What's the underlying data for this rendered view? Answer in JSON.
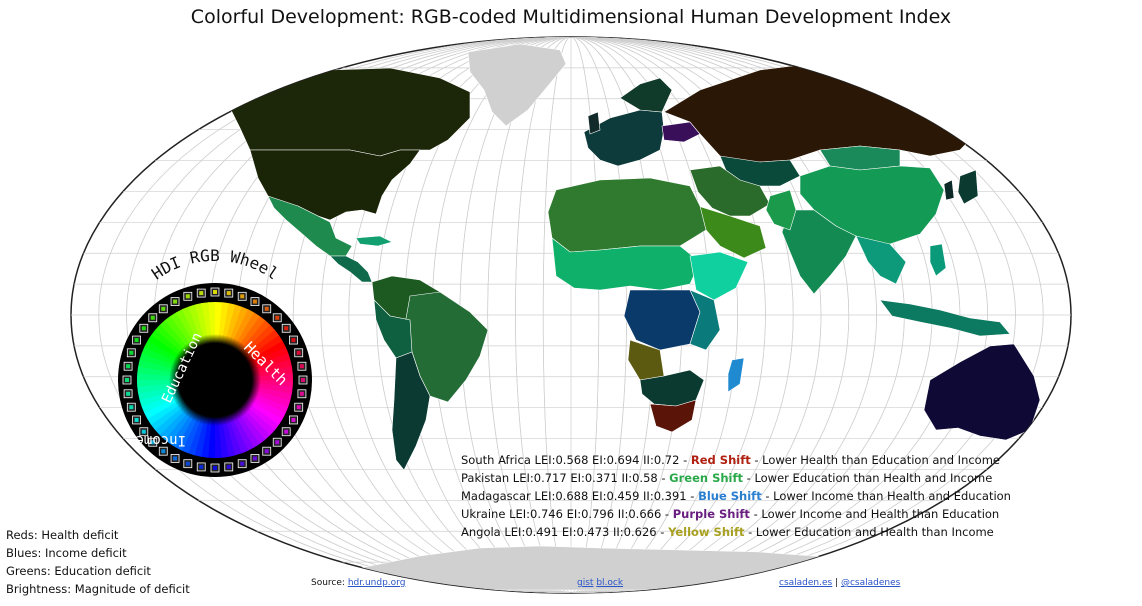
{
  "title": "Colorful Development: RGB-coded Multidimensional Human Development Index",
  "wheel": {
    "title": "HDI RGB Wheel",
    "label_health": "Health",
    "label_education": "Education",
    "label_income": "Income"
  },
  "examples": [
    {
      "prefix": "South Africa LEI:0.568 EI:0.694 II:0.72 - ",
      "shift": "Red Shift",
      "shift_color": "#b02010",
      "suffix": " - Lower Health than Education and Income"
    },
    {
      "prefix": "Pakistan LEI:0.717 EI:0.371 II:0.58 - ",
      "shift": "Green Shift",
      "shift_color": "#2aa84a",
      "suffix": " - Lower Education than Health and Income"
    },
    {
      "prefix": "Madagascar LEI:0.688 EI:0.459 II:0.391 - ",
      "shift": "Blue Shift",
      "shift_color": "#2a7fd0",
      "suffix": " - Lower Income than Health and Education"
    },
    {
      "prefix": "Ukraine LEI:0.746 EI:0.796 II:0.666 - ",
      "shift": "Purple Shift",
      "shift_color": "#6a1f80",
      "suffix": " - Lower Income and Health than Education"
    },
    {
      "prefix": "Angola LEI:0.491 EI:0.473 II:0.626 - ",
      "shift": "Yellow Shift",
      "shift_color": "#a8a020",
      "suffix": " - Lower Education and Health than Income"
    }
  ],
  "legend": [
    {
      "key": "Reds",
      "text": ": Health deficit"
    },
    {
      "key": "Blues",
      "text": ": Income deficit"
    },
    {
      "key": "Greens",
      "text": ": Education deficit"
    },
    {
      "key": "Brightness",
      "text": ": Magnitude of deficit"
    }
  ],
  "footer": {
    "source_label": "Source: ",
    "source_link": "hdr.undp.org",
    "gist_link": "gist",
    "blocks_link": "bl.ock",
    "author_link": "csaladen.es",
    "separator": " | ",
    "twitter_link": "@csaladenes"
  },
  "colors": {
    "ocean": "#ffffff",
    "graticule": "#cccccc",
    "no_data": "#cfcfcf",
    "north_america": "#1c2608",
    "russia": "#2b1706",
    "australia": "#0f0a35",
    "africa_north": "#2f7a2f",
    "south_america": "#1e5e30"
  }
}
